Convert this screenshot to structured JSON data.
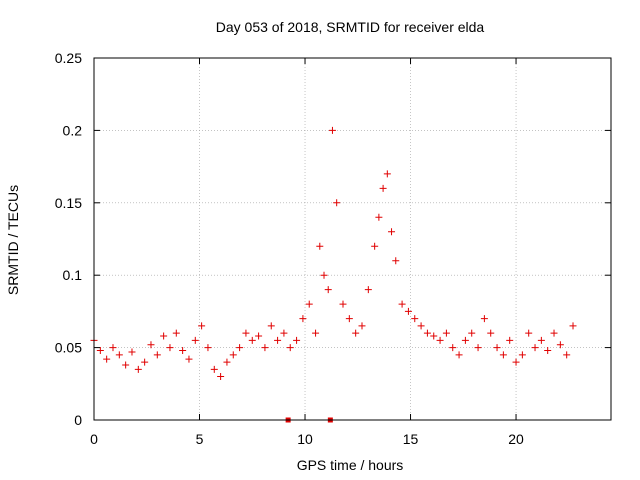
{
  "chart_data": {
    "type": "scatter",
    "title": "Day 053 of 2018, SRMTID for receiver elda",
    "xlabel": "GPS time / hours",
    "ylabel": "SRMTID / TECUs",
    "xlim": [
      0,
      24.5
    ],
    "ylim": [
      0,
      0.25
    ],
    "x_ticks": [
      0,
      5,
      10,
      15,
      20
    ],
    "x_tick_labels": [
      "0",
      "5",
      "10",
      "15",
      "20"
    ],
    "y_ticks": [
      0,
      0.05,
      0.1,
      0.15,
      0.2,
      0.25
    ],
    "y_tick_labels": [
      "0",
      "0.05",
      "0.1",
      "0.15",
      "0.2",
      "0.25"
    ],
    "grid": true,
    "marker": "+",
    "color": "#e00000",
    "series": [
      {
        "name": "SRMTID",
        "x": [
          0.0,
          0.3,
          0.6,
          0.9,
          1.2,
          1.5,
          1.8,
          2.1,
          2.4,
          2.7,
          3.0,
          3.3,
          3.6,
          3.9,
          4.2,
          4.5,
          4.8,
          5.1,
          5.4,
          5.7,
          6.0,
          6.3,
          6.6,
          6.9,
          7.2,
          7.5,
          7.8,
          8.1,
          8.4,
          8.7,
          9.0,
          9.3,
          9.6,
          9.9,
          10.2,
          10.5,
          10.7,
          10.9,
          11.1,
          11.3,
          11.5,
          11.8,
          12.1,
          12.4,
          12.7,
          13.0,
          13.3,
          13.5,
          13.7,
          13.9,
          14.1,
          14.3,
          14.6,
          14.9,
          15.2,
          15.5,
          15.8,
          16.1,
          16.4,
          16.7,
          17.0,
          17.3,
          17.6,
          17.9,
          18.2,
          18.5,
          18.8,
          19.1,
          19.4,
          19.7,
          20.0,
          20.3,
          20.6,
          20.9,
          21.2,
          21.5,
          21.8,
          22.1,
          22.4,
          22.7
        ],
        "values": [
          0.055,
          0.048,
          0.042,
          0.05,
          0.045,
          0.038,
          0.047,
          0.035,
          0.04,
          0.052,
          0.045,
          0.058,
          0.05,
          0.06,
          0.048,
          0.042,
          0.055,
          0.065,
          0.05,
          0.035,
          0.03,
          0.04,
          0.045,
          0.05,
          0.06,
          0.055,
          0.058,
          0.05,
          0.065,
          0.055,
          0.06,
          0.05,
          0.055,
          0.07,
          0.08,
          0.06,
          0.12,
          0.1,
          0.09,
          0.2,
          0.15,
          0.08,
          0.07,
          0.06,
          0.065,
          0.09,
          0.12,
          0.14,
          0.16,
          0.17,
          0.13,
          0.11,
          0.08,
          0.075,
          0.07,
          0.065,
          0.06,
          0.058,
          0.055,
          0.06,
          0.05,
          0.045,
          0.055,
          0.06,
          0.05,
          0.07,
          0.06,
          0.05,
          0.045,
          0.055,
          0.04,
          0.045,
          0.06,
          0.05,
          0.055,
          0.048,
          0.06,
          0.052,
          0.045,
          0.065
        ]
      }
    ],
    "axis_markers": [
      {
        "x": 9.2,
        "y": 0
      },
      {
        "x": 11.2,
        "y": 0
      }
    ]
  }
}
